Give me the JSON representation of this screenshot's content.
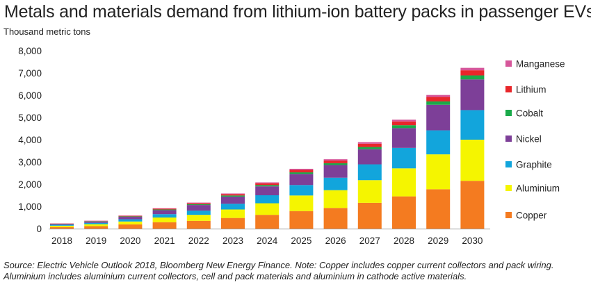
{
  "title": "Metals and materials demand from lithium-ion battery packs in passenger EVs",
  "unit_label": "Thousand metric tons",
  "source_line1": "Source: Electric Vehicle Outlook 2018, Bloomberg New Energy Finance. Note: Copper includes copper current collectors and pack wiring.",
  "source_line2": "Aluminium includes aluminium current collectors, cell and pack materials and aluminium in cathode active materials.",
  "colors": {
    "Copper": "#f47b20",
    "Aluminium": "#f5f500",
    "Graphite": "#12a5dc",
    "Nickel": "#7d3f98",
    "Cobalt": "#1aaa4a",
    "Lithium": "#e8262a",
    "Manganese": "#d6569a"
  },
  "chart_data": {
    "type": "bar",
    "stacked": true,
    "title": "Metals and materials demand from lithium-ion battery packs in passenger EVs",
    "xlabel": "",
    "ylabel": "Thousand metric tons",
    "ylim": [
      0,
      8000
    ],
    "yticks": [
      0,
      1000,
      2000,
      3000,
      4000,
      5000,
      6000,
      7000,
      8000
    ],
    "ytick_labels": [
      "0",
      "1,000",
      "2,000",
      "3,000",
      "4,000",
      "5,000",
      "6,000",
      "7,000",
      "8,000"
    ],
    "grid": false,
    "legend_position": "right",
    "legend_order": [
      "Manganese",
      "Lithium",
      "Cobalt",
      "Nickel",
      "Graphite",
      "Aluminium",
      "Copper"
    ],
    "categories": [
      "2018",
      "2019",
      "2020",
      "2021",
      "2022",
      "2023",
      "2024",
      "2025",
      "2026",
      "2027",
      "2028",
      "2029",
      "2030"
    ],
    "series": [
      {
        "name": "Copper",
        "values": [
          70,
          110,
          190,
          290,
          350,
          480,
          620,
          790,
          930,
          1160,
          1450,
          1770,
          2150
        ]
      },
      {
        "name": "Aluminium",
        "values": [
          60,
          90,
          130,
          210,
          270,
          380,
          520,
          700,
          800,
          1020,
          1260,
          1570,
          1850
        ]
      },
      {
        "name": "Graphite",
        "values": [
          40,
          60,
          100,
          150,
          190,
          260,
          360,
          470,
          560,
          710,
          920,
          1080,
          1330
        ]
      },
      {
        "name": "Nickel",
        "values": [
          40,
          60,
          110,
          180,
          250,
          320,
          400,
          500,
          570,
          680,
          890,
          1150,
          1380
        ]
      },
      {
        "name": "Cobalt",
        "values": [
          10,
          15,
          20,
          30,
          40,
          50,
          60,
          70,
          80,
          100,
          130,
          150,
          180
        ]
      },
      {
        "name": "Lithium",
        "values": [
          10,
          15,
          25,
          40,
          45,
          60,
          80,
          110,
          120,
          150,
          170,
          200,
          230
        ]
      },
      {
        "name": "Manganese",
        "values": [
          5,
          10,
          15,
          20,
          25,
          30,
          40,
          50,
          60,
          70,
          80,
          90,
          110
        ]
      }
    ]
  }
}
